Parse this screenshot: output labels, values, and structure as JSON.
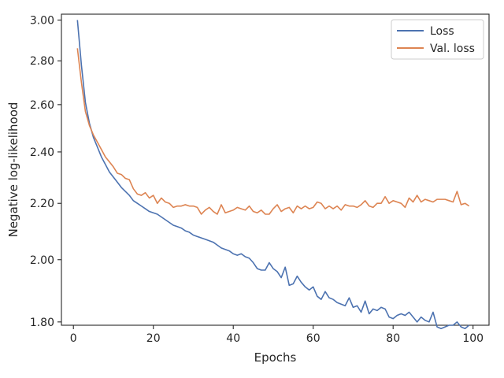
{
  "chart_data": {
    "type": "line",
    "xlabel": "Epochs",
    "ylabel": "Negative log-likelihood",
    "xlim": [
      -3,
      104
    ],
    "ylim": [
      1.79,
      3.03
    ],
    "y_scale": "log",
    "x_ticks": [
      0,
      20,
      40,
      60,
      80,
      100
    ],
    "x_tick_labels": [
      "0",
      "20",
      "40",
      "60",
      "80",
      "100"
    ],
    "y_ticks": [
      1.8,
      2.0,
      2.2,
      2.4,
      2.6,
      2.8,
      3.0
    ],
    "y_tick_labels": [
      "1.80",
      "2.00",
      "2.20",
      "2.40",
      "2.60",
      "2.80",
      "3.00"
    ],
    "grid": false,
    "legend_position": "top-right",
    "x": [
      1,
      2,
      3,
      4,
      5,
      6,
      7,
      8,
      9,
      10,
      11,
      12,
      13,
      14,
      15,
      16,
      17,
      18,
      19,
      20,
      21,
      22,
      23,
      24,
      25,
      26,
      27,
      28,
      29,
      30,
      31,
      32,
      33,
      34,
      35,
      36,
      37,
      38,
      39,
      40,
      41,
      42,
      43,
      44,
      45,
      46,
      47,
      48,
      49,
      50,
      51,
      52,
      53,
      54,
      55,
      56,
      57,
      58,
      59,
      60,
      61,
      62,
      63,
      64,
      65,
      66,
      67,
      68,
      69,
      70,
      71,
      72,
      73,
      74,
      75,
      76,
      77,
      78,
      79,
      80,
      81,
      82,
      83,
      84,
      85,
      86,
      87,
      88,
      89,
      90,
      91,
      92,
      93,
      94,
      95,
      96,
      97,
      98,
      99
    ],
    "series": [
      {
        "name": "Loss",
        "color": "#4c72b0",
        "values": [
          3.0,
          2.78,
          2.61,
          2.52,
          2.46,
          2.42,
          2.38,
          2.35,
          2.32,
          2.3,
          2.28,
          2.26,
          2.245,
          2.23,
          2.21,
          2.2,
          2.19,
          2.18,
          2.17,
          2.165,
          2.16,
          2.15,
          2.14,
          2.13,
          2.12,
          2.115,
          2.11,
          2.1,
          2.095,
          2.085,
          2.08,
          2.075,
          2.07,
          2.065,
          2.06,
          2.05,
          2.04,
          2.035,
          2.03,
          2.02,
          2.015,
          2.02,
          2.01,
          2.005,
          1.99,
          1.97,
          1.965,
          1.965,
          1.99,
          1.97,
          1.96,
          1.94,
          1.975,
          1.915,
          1.92,
          1.945,
          1.925,
          1.91,
          1.9,
          1.91,
          1.88,
          1.87,
          1.895,
          1.875,
          1.87,
          1.86,
          1.855,
          1.85,
          1.875,
          1.845,
          1.85,
          1.83,
          1.865,
          1.825,
          1.84,
          1.835,
          1.845,
          1.84,
          1.815,
          1.81,
          1.82,
          1.825,
          1.82,
          1.83,
          1.815,
          1.8,
          1.815,
          1.805,
          1.8,
          1.83,
          1.785,
          1.78,
          1.785,
          1.79,
          1.79,
          1.8,
          1.785,
          1.78,
          1.79
        ]
      },
      {
        "name": "Val. loss",
        "color": "#dd8452",
        "values": [
          2.86,
          2.7,
          2.57,
          2.51,
          2.47,
          2.44,
          2.41,
          2.38,
          2.36,
          2.34,
          2.315,
          2.31,
          2.295,
          2.29,
          2.255,
          2.235,
          2.23,
          2.24,
          2.22,
          2.23,
          2.2,
          2.22,
          2.205,
          2.2,
          2.185,
          2.19,
          2.19,
          2.195,
          2.19,
          2.19,
          2.185,
          2.16,
          2.175,
          2.185,
          2.17,
          2.16,
          2.195,
          2.165,
          2.17,
          2.175,
          2.185,
          2.18,
          2.175,
          2.19,
          2.17,
          2.165,
          2.175,
          2.16,
          2.16,
          2.18,
          2.195,
          2.17,
          2.18,
          2.185,
          2.165,
          2.19,
          2.18,
          2.19,
          2.18,
          2.185,
          2.205,
          2.2,
          2.18,
          2.19,
          2.18,
          2.19,
          2.175,
          2.195,
          2.19,
          2.19,
          2.185,
          2.195,
          2.21,
          2.19,
          2.185,
          2.2,
          2.2,
          2.225,
          2.2,
          2.21,
          2.205,
          2.2,
          2.185,
          2.22,
          2.205,
          2.23,
          2.205,
          2.215,
          2.21,
          2.205,
          2.215,
          2.215,
          2.215,
          2.21,
          2.205,
          2.245,
          2.195,
          2.2,
          2.19
        ]
      }
    ]
  }
}
